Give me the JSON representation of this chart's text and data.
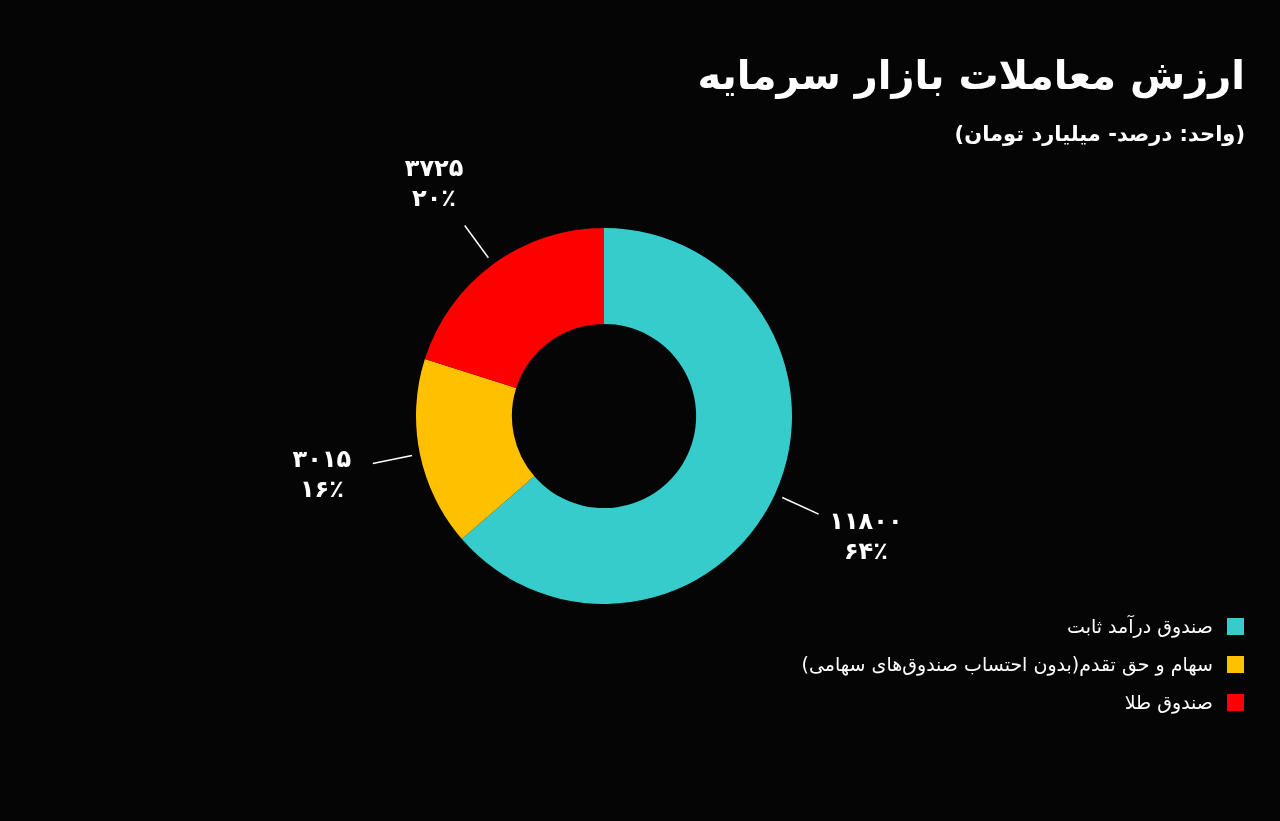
{
  "chart_data": {
    "type": "donut",
    "title": "ارزش معاملات بازار سرمایه",
    "subtitle": "(واحد: درصد- میلیارد تومان)",
    "categories": [
      "صندوق درآمد ثابت",
      "سهام و حق تقدم(بدون احتساب صندوق‌های سهامی)",
      "صندوق طلا"
    ],
    "values": [
      11800,
      3015,
      3725
    ],
    "colors": [
      "#36cccc",
      "#ffc000",
      "#ff0000"
    ],
    "value_labels": [
      "۱۱۸۰۰\n۶۴٪",
      "۳۰۱۵\n۱۶٪",
      "۳۷۲۵\n۲۰٪"
    ],
    "legend": "bottom right"
  }
}
